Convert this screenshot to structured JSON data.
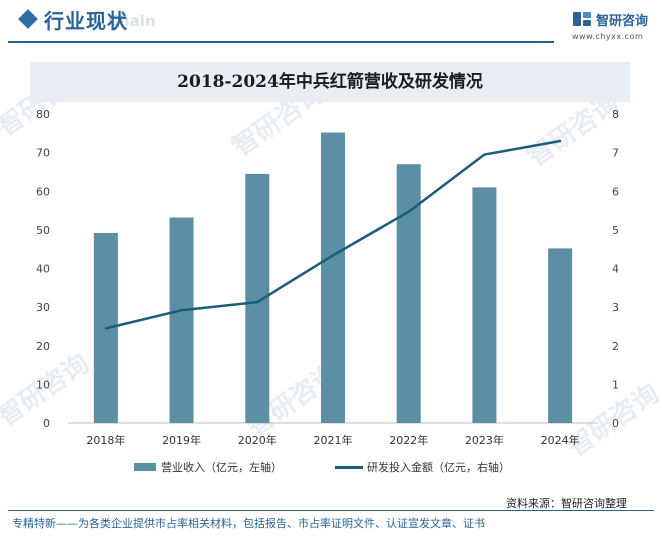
{
  "header": {
    "section_title": "行业现状",
    "ghost_text": "Chain",
    "brand_name": "智研咨询",
    "brand_url": "www.chyxx.com"
  },
  "watermark": "智研咨询",
  "colors": {
    "bar": "#5c8ea6",
    "line": "#1a5d79",
    "accent": "#2a6496",
    "title_bg": "#e9eef4"
  },
  "chart_data": {
    "type": "bar",
    "title": "2018-2024年中兵红箭营收及研发情况",
    "categories": [
      "2018年",
      "2019年",
      "2020年",
      "2021年",
      "2022年",
      "2023年",
      "2024年"
    ],
    "series": [
      {
        "name": "营业收入（亿元，左轴）",
        "type": "bar",
        "axis": "left",
        "values": [
          49.2,
          53.2,
          64.5,
          75.2,
          67.0,
          61.0,
          45.2
        ]
      },
      {
        "name": "研发投入金额（亿元，右轴）",
        "type": "line",
        "axis": "right",
        "values": [
          2.45,
          2.92,
          3.13,
          4.34,
          5.47,
          6.95,
          7.3
        ]
      }
    ],
    "y_left": {
      "ticks": [
        "0",
        "10",
        "20",
        "30",
        "40",
        "50",
        "60",
        "70",
        "80"
      ],
      "range": [
        0,
        80
      ]
    },
    "y_right": {
      "ticks": [
        "0",
        "1",
        "2",
        "3",
        "4",
        "5",
        "6",
        "7",
        "8"
      ],
      "range": [
        0,
        8
      ]
    },
    "grid": false,
    "legend_position": "bottom"
  },
  "source_text": "资料来源：智研咨询整理",
  "footer_text": "专精特新——为各类企业提供市占率相关材料，包括报告、市占率证明文件、认证宣发文章、证书"
}
